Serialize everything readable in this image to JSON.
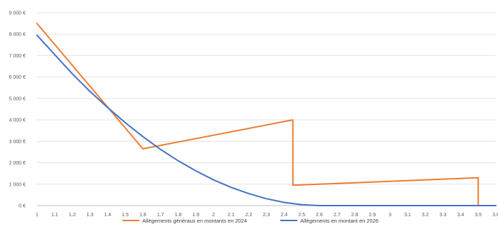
{
  "chart_data": {
    "type": "line",
    "title": "",
    "xlabel": "",
    "ylabel": "",
    "y_tick_labels": [
      "0 €",
      "1 000 €",
      "2 000 €",
      "3 000 €",
      "4 000 €",
      "5 000 €",
      "6 000 €",
      "7 000 €",
      "8 000 €",
      "9 000 €"
    ],
    "y_ticks": [
      0,
      1000,
      2000,
      3000,
      4000,
      5000,
      6000,
      7000,
      8000,
      9000
    ],
    "x_tick_labels": [
      "1",
      "1.1",
      "1.2",
      "1.3",
      "1.4",
      "1.5",
      "1.6",
      "1.7",
      "1.8",
      "1.9",
      "2",
      "2.1",
      "2.2",
      "2.3",
      "2.4",
      "2.5",
      "2.6",
      "2.7",
      "2.8",
      "2.9",
      "3",
      "3.1",
      "3.2",
      "3.3",
      "3.4",
      "3.5",
      "3.6"
    ],
    "x_ticks": [
      1.0,
      1.1,
      1.2,
      1.3,
      1.4,
      1.5,
      1.6,
      1.7,
      1.8,
      1.9,
      2.0,
      2.1,
      2.2,
      2.3,
      2.4,
      2.5,
      2.6,
      2.7,
      2.8,
      2.9,
      3.0,
      3.1,
      3.2,
      3.3,
      3.4,
      3.5,
      3.6
    ],
    "xlim": [
      1.0,
      3.6
    ],
    "ylim": [
      0,
      9000
    ],
    "grid": true,
    "legend_position": "bottom",
    "series": [
      {
        "name": "Allègements généraux en montants en 2024",
        "color": "#ED7D31",
        "x": [
          1.0,
          1.6,
          2.45,
          2.45,
          3.5,
          3.5
        ],
        "y": [
          8500,
          2650,
          4000,
          950,
          1300,
          0
        ]
      },
      {
        "name": "Allègements en montant en 2026",
        "color": "#4472C4",
        "x": [
          1.0,
          1.1,
          1.2,
          1.3,
          1.4,
          1.5,
          1.6,
          1.7,
          1.8,
          1.9,
          2.0,
          2.1,
          2.2,
          2.3,
          2.4,
          2.5,
          2.6,
          2.7,
          2.8,
          2.9,
          3.0,
          3.1,
          3.2,
          3.3,
          3.4,
          3.5,
          3.6
        ],
        "y": [
          7950,
          7050,
          6150,
          5330,
          4580,
          3870,
          3220,
          2620,
          2090,
          1620,
          1200,
          850,
          560,
          320,
          150,
          40,
          0,
          0,
          0,
          0,
          0,
          0,
          0,
          0,
          0,
          0,
          0
        ]
      }
    ]
  }
}
